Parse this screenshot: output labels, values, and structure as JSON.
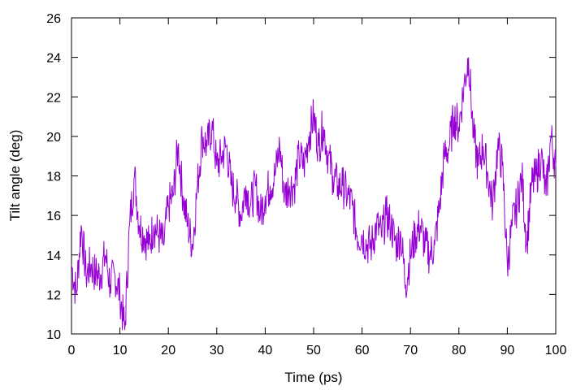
{
  "chart_data": {
    "type": "line",
    "xlabel": "Time (ps)",
    "ylabel": "Tilt angle (deg)",
    "xlim": [
      0,
      100
    ],
    "ylim": [
      10,
      26
    ],
    "xticks": [
      0,
      10,
      20,
      30,
      40,
      50,
      60,
      70,
      80,
      90,
      100
    ],
    "yticks": [
      10,
      12,
      14,
      16,
      18,
      20,
      22,
      24,
      26
    ],
    "grid": false,
    "legend": "none",
    "series": [
      {
        "color": "#9400d3",
        "x": [
          0,
          1,
          2,
          3,
          4,
          5,
          6,
          7,
          8,
          9,
          10,
          11,
          12,
          13,
          14,
          15,
          16,
          17,
          18,
          19,
          20,
          21,
          22,
          23,
          24,
          25,
          26,
          27,
          28,
          29,
          30,
          31,
          32,
          33,
          34,
          35,
          36,
          37,
          38,
          39,
          40,
          41,
          42,
          43,
          44,
          45,
          46,
          47,
          48,
          49,
          50,
          51,
          52,
          53,
          54,
          55,
          56,
          57,
          58,
          59,
          60,
          61,
          62,
          63,
          64,
          65,
          66,
          67,
          68,
          69,
          70,
          71,
          72,
          73,
          74,
          75,
          76,
          77,
          78,
          79,
          80,
          81,
          82,
          83,
          84,
          85,
          86,
          87,
          88,
          89,
          90,
          91,
          92,
          93,
          94,
          95,
          96,
          97,
          98,
          99,
          100
        ],
        "y": [
          13.5,
          12.0,
          15.5,
          13.0,
          13.5,
          13.0,
          13.0,
          14.0,
          12.5,
          13.0,
          12.0,
          10.2,
          15.5,
          18.0,
          15.5,
          15.0,
          14.5,
          15.5,
          15.0,
          14.5,
          16.5,
          17.0,
          19.5,
          17.0,
          15.5,
          14.5,
          17.5,
          20.0,
          19.5,
          20.5,
          18.5,
          19.0,
          19.5,
          17.5,
          17.0,
          16.0,
          17.5,
          16.5,
          17.5,
          16.0,
          17.0,
          17.5,
          18.0,
          19.5,
          17.0,
          17.5,
          17.5,
          19.0,
          18.5,
          20.0,
          21.0,
          19.5,
          20.5,
          19.0,
          18.0,
          17.5,
          17.5,
          17.0,
          16.5,
          15.0,
          15.0,
          14.5,
          14.5,
          15.5,
          15.0,
          16.0,
          15.5,
          14.5,
          15.0,
          12.5,
          14.0,
          15.0,
          15.5,
          14.5,
          14.0,
          14.5,
          16.5,
          19.0,
          19.5,
          21.0,
          20.5,
          22.5,
          24.0,
          20.0,
          18.5,
          19.5,
          18.0,
          16.5,
          19.5,
          18.5,
          13.5,
          15.5,
          16.5,
          18.0,
          14.5,
          17.5,
          18.0,
          19.0,
          17.0,
          20.0,
          18.5
        ]
      }
    ]
  }
}
